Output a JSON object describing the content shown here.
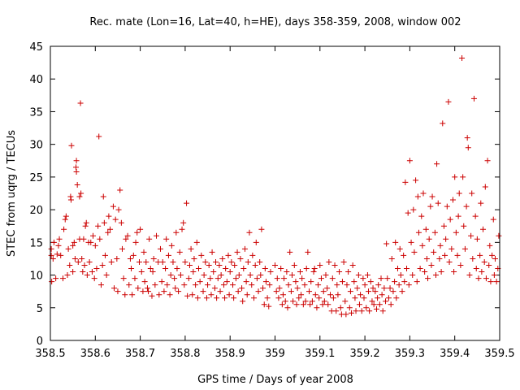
{
  "chart_data": {
    "type": "scatter",
    "title": "Rec. mate (Lon=16, Lat=40, h=HE), days 358-359, 2008, window 002",
    "xlabel": "GPS time / Days of year 2008",
    "ylabel": "STEC from uqrg / TECUs",
    "xlim": [
      358.5,
      359.5
    ],
    "ylim": [
      0,
      45
    ],
    "xticks": [
      "358.5",
      "358.6",
      "358.7",
      "358.8",
      "358.9",
      "359",
      "359.1",
      "359.2",
      "359.3",
      "359.4",
      "359.5"
    ],
    "yticks": [
      "0",
      "5",
      "10",
      "15",
      "20",
      "25",
      "30",
      "35",
      "40",
      "45"
    ],
    "grid": false,
    "marker": "plus",
    "color": "#cc0000",
    "points": [
      [
        358.502,
        14.0
      ],
      [
        358.502,
        13.0
      ],
      [
        358.503,
        9.0
      ],
      [
        358.506,
        12.5
      ],
      [
        358.508,
        15.0
      ],
      [
        358.512,
        9.5
      ],
      [
        358.515,
        13.2
      ],
      [
        358.518,
        14.5
      ],
      [
        358.52,
        15.5
      ],
      [
        358.523,
        13.0
      ],
      [
        358.528,
        9.5
      ],
      [
        358.53,
        17.0
      ],
      [
        358.533,
        18.5
      ],
      [
        358.535,
        19.0
      ],
      [
        358.538,
        10.0
      ],
      [
        358.54,
        14.0
      ],
      [
        358.543,
        11.5
      ],
      [
        358.545,
        22.0
      ],
      [
        358.546,
        21.5
      ],
      [
        358.547,
        29.8
      ],
      [
        358.55,
        10.5
      ],
      [
        358.55,
        14.5
      ],
      [
        358.553,
        15.0
      ],
      [
        358.555,
        12.5
      ],
      [
        358.557,
        26.5
      ],
      [
        358.558,
        27.5
      ],
      [
        358.558,
        25.8
      ],
      [
        358.56,
        23.8
      ],
      [
        358.562,
        12.0
      ],
      [
        358.565,
        15.5
      ],
      [
        358.565,
        22.0
      ],
      [
        358.567,
        36.3
      ],
      [
        358.568,
        22.5
      ],
      [
        358.57,
        12.5
      ],
      [
        358.572,
        10.5
      ],
      [
        358.574,
        15.5
      ],
      [
        358.576,
        11.5
      ],
      [
        358.578,
        17.5
      ],
      [
        358.58,
        18.0
      ],
      [
        358.582,
        10.0
      ],
      [
        358.585,
        15.0
      ],
      [
        358.587,
        12.0
      ],
      [
        358.59,
        15.0
      ],
      [
        358.593,
        10.5
      ],
      [
        358.595,
        16.0
      ],
      [
        358.598,
        9.5
      ],
      [
        358.6,
        14.5
      ],
      [
        358.603,
        11.0
      ],
      [
        358.606,
        17.5
      ],
      [
        358.608,
        31.2
      ],
      [
        358.61,
        15.5
      ],
      [
        358.613,
        8.5
      ],
      [
        358.616,
        11.5
      ],
      [
        358.618,
        22.0
      ],
      [
        358.62,
        18.0
      ],
      [
        358.622,
        13.0
      ],
      [
        358.625,
        10.0
      ],
      [
        358.628,
        16.5
      ],
      [
        358.63,
        19.0
      ],
      [
        358.633,
        17.0
      ],
      [
        358.636,
        12.0
      ],
      [
        358.64,
        20.5
      ],
      [
        358.642,
        8.0
      ],
      [
        358.645,
        18.5
      ],
      [
        358.648,
        12.5
      ],
      [
        358.65,
        7.5
      ],
      [
        358.652,
        20.0
      ],
      [
        358.655,
        23.0
      ],
      [
        358.658,
        18.0
      ],
      [
        358.66,
        14.0
      ],
      [
        358.663,
        9.5
      ],
      [
        358.666,
        7.0
      ],
      [
        358.668,
        15.5
      ],
      [
        358.672,
        16.0
      ],
      [
        358.675,
        8.5
      ],
      [
        358.678,
        12.5
      ],
      [
        358.68,
        11.0
      ],
      [
        358.682,
        7.0
      ],
      [
        358.685,
        13.0
      ],
      [
        358.688,
        9.5
      ],
      [
        358.69,
        15.0
      ],
      [
        358.693,
        16.5
      ],
      [
        358.695,
        8.0
      ],
      [
        358.698,
        12.0
      ],
      [
        358.7,
        17.0
      ],
      [
        358.703,
        10.5
      ],
      [
        358.706,
        7.5
      ],
      [
        358.708,
        13.5
      ],
      [
        358.71,
        9.0
      ],
      [
        358.713,
        12.0
      ],
      [
        358.716,
        8.0
      ],
      [
        358.718,
        7.5
      ],
      [
        358.72,
        15.5
      ],
      [
        358.723,
        11.0
      ],
      [
        358.726,
        6.8
      ],
      [
        358.728,
        10.5
      ],
      [
        358.73,
        12.5
      ],
      [
        358.733,
        8.5
      ],
      [
        358.736,
        16.0
      ],
      [
        358.74,
        12.0
      ],
      [
        358.742,
        7.0
      ],
      [
        358.745,
        14.0
      ],
      [
        358.748,
        9.0
      ],
      [
        358.75,
        12.0
      ],
      [
        358.753,
        7.5
      ],
      [
        358.756,
        11.0
      ],
      [
        358.758,
        15.5
      ],
      [
        358.76,
        8.5
      ],
      [
        358.763,
        13.0
      ],
      [
        358.766,
        7.0
      ],
      [
        358.768,
        10.0
      ],
      [
        358.77,
        14.5
      ],
      [
        358.773,
        12.0
      ],
      [
        358.776,
        9.5
      ],
      [
        358.778,
        8.0
      ],
      [
        358.78,
        16.5
      ],
      [
        358.782,
        11.0
      ],
      [
        358.785,
        7.5
      ],
      [
        358.788,
        13.5
      ],
      [
        358.79,
        10.0
      ],
      [
        358.793,
        17.0
      ],
      [
        358.796,
        18.0
      ],
      [
        358.798,
        8.5
      ],
      [
        358.8,
        12.0
      ],
      [
        358.803,
        21.0
      ],
      [
        358.805,
        6.8
      ],
      [
        358.808,
        9.5
      ],
      [
        358.81,
        11.5
      ],
      [
        358.813,
        14.0
      ],
      [
        358.816,
        7.0
      ],
      [
        358.818,
        10.5
      ],
      [
        358.82,
        12.5
      ],
      [
        358.823,
        8.5
      ],
      [
        358.826,
        15.0
      ],
      [
        358.828,
        6.5
      ],
      [
        358.83,
        11.0
      ],
      [
        358.833,
        9.0
      ],
      [
        358.836,
        13.0
      ],
      [
        358.84,
        7.5
      ],
      [
        358.842,
        10.0
      ],
      [
        358.845,
        12.0
      ],
      [
        358.848,
        6.5
      ],
      [
        358.85,
        8.5
      ],
      [
        358.853,
        11.5
      ],
      [
        358.856,
        9.5
      ],
      [
        358.858,
        7.0
      ],
      [
        358.86,
        13.5
      ],
      [
        358.863,
        10.5
      ],
      [
        358.866,
        8.0
      ],
      [
        358.868,
        12.0
      ],
      [
        358.87,
        6.5
      ],
      [
        358.873,
        9.5
      ],
      [
        358.876,
        11.5
      ],
      [
        358.878,
        7.5
      ],
      [
        358.88,
        10.0
      ],
      [
        358.883,
        12.5
      ],
      [
        358.886,
        8.5
      ],
      [
        358.888,
        6.5
      ],
      [
        358.89,
        11.0
      ],
      [
        358.893,
        9.0
      ],
      [
        358.896,
        13.0
      ],
      [
        358.898,
        7.0
      ],
      [
        358.9,
        10.5
      ],
      [
        358.903,
        12.0
      ],
      [
        358.906,
        8.5
      ],
      [
        358.908,
        6.5
      ],
      [
        358.91,
        11.5
      ],
      [
        358.913,
        9.5
      ],
      [
        358.916,
        13.5
      ],
      [
        358.918,
        7.5
      ],
      [
        358.92,
        10.0
      ],
      [
        358.923,
        12.5
      ],
      [
        358.926,
        8.0
      ],
      [
        358.928,
        6.0
      ],
      [
        358.93,
        11.0
      ],
      [
        358.933,
        14.0
      ],
      [
        358.936,
        9.0
      ],
      [
        358.938,
        7.0
      ],
      [
        358.94,
        12.0
      ],
      [
        358.943,
        16.5
      ],
      [
        358.945,
        10.0
      ],
      [
        358.948,
        8.5
      ],
      [
        358.95,
        13.0
      ],
      [
        358.953,
        6.5
      ],
      [
        358.956,
        11.5
      ],
      [
        358.958,
        15.0
      ],
      [
        358.96,
        9.5
      ],
      [
        358.963,
        7.5
      ],
      [
        358.966,
        12.0
      ],
      [
        358.968,
        10.0
      ],
      [
        358.97,
        17.0
      ],
      [
        358.973,
        8.0
      ],
      [
        358.976,
        5.5
      ],
      [
        358.978,
        11.0
      ],
      [
        358.98,
        9.0
      ],
      [
        358.983,
        6.5
      ],
      [
        358.986,
        5.2
      ],
      [
        358.988,
        8.5
      ],
      [
        358.99,
        10.5
      ],
      [
        359.0,
        11.5
      ],
      [
        359.003,
        7.5
      ],
      [
        359.005,
        9.5
      ],
      [
        359.008,
        6.5
      ],
      [
        359.01,
        8.0
      ],
      [
        359.013,
        11.0
      ],
      [
        359.016,
        5.5
      ],
      [
        359.018,
        7.0
      ],
      [
        359.02,
        9.5
      ],
      [
        359.023,
        6.0
      ],
      [
        359.026,
        10.5
      ],
      [
        359.028,
        5.0
      ],
      [
        359.03,
        8.5
      ],
      [
        359.033,
        13.5
      ],
      [
        359.036,
        7.5
      ],
      [
        359.038,
        10.0
      ],
      [
        359.04,
        6.0
      ],
      [
        359.043,
        11.5
      ],
      [
        359.046,
        9.0
      ],
      [
        359.048,
        5.5
      ],
      [
        359.05,
        8.0
      ],
      [
        359.053,
        6.5
      ],
      [
        359.056,
        10.5
      ],
      [
        359.058,
        7.0
      ],
      [
        359.06,
        9.5
      ],
      [
        359.063,
        5.5
      ],
      [
        359.066,
        8.5
      ],
      [
        359.068,
        6.0
      ],
      [
        359.07,
        11.0
      ],
      [
        359.073,
        13.5
      ],
      [
        359.076,
        7.5
      ],
      [
        359.078,
        5.5
      ],
      [
        359.08,
        9.0
      ],
      [
        359.083,
        6.0
      ],
      [
        359.086,
        10.5
      ],
      [
        359.088,
        11.0
      ],
      [
        359.09,
        7.0
      ],
      [
        359.093,
        5.0
      ],
      [
        359.096,
        8.5
      ],
      [
        359.098,
        6.5
      ],
      [
        359.1,
        11.5
      ],
      [
        359.103,
        9.5
      ],
      [
        359.106,
        5.5
      ],
      [
        359.108,
        7.5
      ],
      [
        359.11,
        6.0
      ],
      [
        359.113,
        10.0
      ],
      [
        359.116,
        8.0
      ],
      [
        359.118,
        5.5
      ],
      [
        359.12,
        12.0
      ],
      [
        359.123,
        7.0
      ],
      [
        359.126,
        4.5
      ],
      [
        359.128,
        9.5
      ],
      [
        359.13,
        6.5
      ],
      [
        359.133,
        11.5
      ],
      [
        359.136,
        4.5
      ],
      [
        359.138,
        8.5
      ],
      [
        359.14,
        7.0
      ],
      [
        359.143,
        10.5
      ],
      [
        359.146,
        5.0
      ],
      [
        359.148,
        4.0
      ],
      [
        359.15,
        9.0
      ],
      [
        359.153,
        12.0
      ],
      [
        359.156,
        6.0
      ],
      [
        359.158,
        4.0
      ],
      [
        359.16,
        8.5
      ],
      [
        359.163,
        10.5
      ],
      [
        359.166,
        5.0
      ],
      [
        359.168,
        7.5
      ],
      [
        359.17,
        4.2
      ],
      [
        359.173,
        11.5
      ],
      [
        359.176,
        9.0
      ],
      [
        359.178,
        6.5
      ],
      [
        359.18,
        4.5
      ],
      [
        359.183,
        8.0
      ],
      [
        359.186,
        10.0
      ],
      [
        359.188,
        5.5
      ],
      [
        359.19,
        7.0
      ],
      [
        359.193,
        4.5
      ],
      [
        359.196,
        9.5
      ],
      [
        359.198,
        6.5
      ],
      [
        359.2,
        8.5
      ],
      [
        359.203,
        5.0
      ],
      [
        359.206,
        10.0
      ],
      [
        359.208,
        7.5
      ],
      [
        359.21,
        4.5
      ],
      [
        359.213,
        9.0
      ],
      [
        359.216,
        6.0
      ],
      [
        359.218,
        8.0
      ],
      [
        359.22,
        5.5
      ],
      [
        359.223,
        7.5
      ],
      [
        359.226,
        4.8
      ],
      [
        359.228,
        6.5
      ],
      [
        359.23,
        8.5
      ],
      [
        359.233,
        5.5
      ],
      [
        359.236,
        9.5
      ],
      [
        359.238,
        7.0
      ],
      [
        359.24,
        4.5
      ],
      [
        359.243,
        8.0
      ],
      [
        359.246,
        6.0
      ],
      [
        359.248,
        14.8
      ],
      [
        359.25,
        9.5
      ],
      [
        359.253,
        6.5
      ],
      [
        359.256,
        8.0
      ],
      [
        359.258,
        5.5
      ],
      [
        359.26,
        12.5
      ],
      [
        359.263,
        7.5
      ],
      [
        359.266,
        9.0
      ],
      [
        359.268,
        15.0
      ],
      [
        359.27,
        6.5
      ],
      [
        359.273,
        11.0
      ],
      [
        359.276,
        8.5
      ],
      [
        359.278,
        14.0
      ],
      [
        359.28,
        10.0
      ],
      [
        359.283,
        7.5
      ],
      [
        359.286,
        13.0
      ],
      [
        359.288,
        9.0
      ],
      [
        359.29,
        24.2
      ],
      [
        359.293,
        11.0
      ],
      [
        359.296,
        19.5
      ],
      [
        359.298,
        8.5
      ],
      [
        359.3,
        27.5
      ],
      [
        359.303,
        15.0
      ],
      [
        359.306,
        10.0
      ],
      [
        359.308,
        20.0
      ],
      [
        359.31,
        13.5
      ],
      [
        359.313,
        24.5
      ],
      [
        359.316,
        9.0
      ],
      [
        359.318,
        22.0
      ],
      [
        359.32,
        16.5
      ],
      [
        359.323,
        11.0
      ],
      [
        359.326,
        19.0
      ],
      [
        359.328,
        14.5
      ],
      [
        359.33,
        22.5
      ],
      [
        359.333,
        10.5
      ],
      [
        359.336,
        17.0
      ],
      [
        359.338,
        12.5
      ],
      [
        359.34,
        9.5
      ],
      [
        359.343,
        15.5
      ],
      [
        359.346,
        20.5
      ],
      [
        359.348,
        11.5
      ],
      [
        359.35,
        22.0
      ],
      [
        359.353,
        13.5
      ],
      [
        359.356,
        16.5
      ],
      [
        359.358,
        10.0
      ],
      [
        359.36,
        27.0
      ],
      [
        359.363,
        21.0
      ],
      [
        359.366,
        12.5
      ],
      [
        359.368,
        14.5
      ],
      [
        359.37,
        10.5
      ],
      [
        359.373,
        33.2
      ],
      [
        359.376,
        17.5
      ],
      [
        359.378,
        13.0
      ],
      [
        359.38,
        15.5
      ],
      [
        359.383,
        20.5
      ],
      [
        359.386,
        36.5
      ],
      [
        359.388,
        12.0
      ],
      [
        359.39,
        18.5
      ],
      [
        359.393,
        14.0
      ],
      [
        359.396,
        21.5
      ],
      [
        359.398,
        10.5
      ],
      [
        359.4,
        25.0
      ],
      [
        359.403,
        16.5
      ],
      [
        359.406,
        13.0
      ],
      [
        359.408,
        19.0
      ],
      [
        359.41,
        22.5
      ],
      [
        359.413,
        11.5
      ],
      [
        359.416,
        43.2
      ],
      [
        359.418,
        25.0
      ],
      [
        359.42,
        17.5
      ],
      [
        359.423,
        14.0
      ],
      [
        359.426,
        20.5
      ],
      [
        359.428,
        31.0
      ],
      [
        359.43,
        29.5
      ],
      [
        359.433,
        10.0
      ],
      [
        359.436,
        16.0
      ],
      [
        359.438,
        22.5
      ],
      [
        359.44,
        12.5
      ],
      [
        359.443,
        37.0
      ],
      [
        359.446,
        19.0
      ],
      [
        359.448,
        11.0
      ],
      [
        359.45,
        15.5
      ],
      [
        359.453,
        9.5
      ],
      [
        359.456,
        13.0
      ],
      [
        359.458,
        21.0
      ],
      [
        359.46,
        10.5
      ],
      [
        359.463,
        17.0
      ],
      [
        359.466,
        12.0
      ],
      [
        359.468,
        23.5
      ],
      [
        359.47,
        9.5
      ],
      [
        359.473,
        27.5
      ],
      [
        359.476,
        11.5
      ],
      [
        359.478,
        14.5
      ],
      [
        359.48,
        9.0
      ],
      [
        359.483,
        13.0
      ],
      [
        359.486,
        18.5
      ],
      [
        359.488,
        10.0
      ],
      [
        359.49,
        12.5
      ],
      [
        359.493,
        9.0
      ],
      [
        359.496,
        11.0
      ],
      [
        359.498,
        16.0
      ]
    ]
  }
}
